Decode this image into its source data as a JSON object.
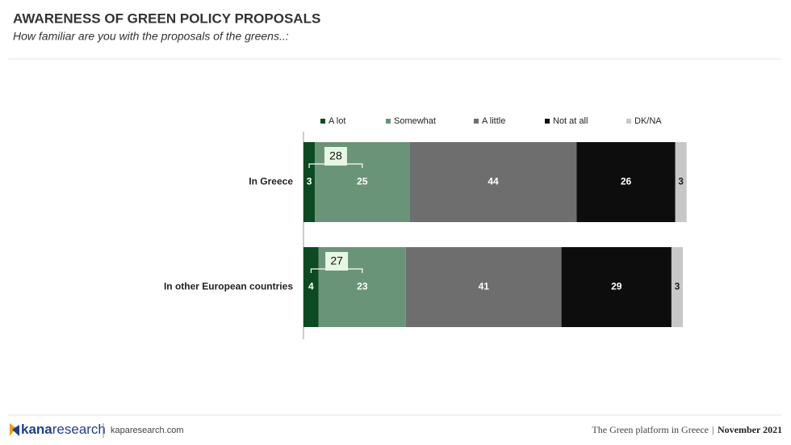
{
  "chart_data": {
    "type": "stacked_barh",
    "title": "AWARENESS OF GREEN POLICY PROPOSALS",
    "subtitle": "How familiar are you with the proposals of the greens..:",
    "categories": [
      "In Greece",
      "In other European countries"
    ],
    "series": [
      {
        "name": "A lot",
        "color": "#0b4a22",
        "values": [
          3,
          4
        ]
      },
      {
        "name": "Somewhat",
        "color": "#6a9478",
        "values": [
          25,
          23
        ]
      },
      {
        "name": "A little",
        "color": "#6e6e6e",
        "values": [
          44,
          41
        ]
      },
      {
        "name": "Not at all",
        "color": "#0d0d0d",
        "values": [
          26,
          29
        ]
      },
      {
        "name": "DK/NA",
        "color": "#c8c8c8",
        "values": [
          3,
          3
        ]
      }
    ],
    "annotations": [
      28,
      27
    ],
    "xlim": [
      0,
      100
    ],
    "legend": "top"
  },
  "footer": {
    "logo_bold": "kana",
    "logo_light": "research",
    "site": "kaparesearch.com",
    "report": "The Green platform in Greece",
    "date": "November 2021"
  }
}
